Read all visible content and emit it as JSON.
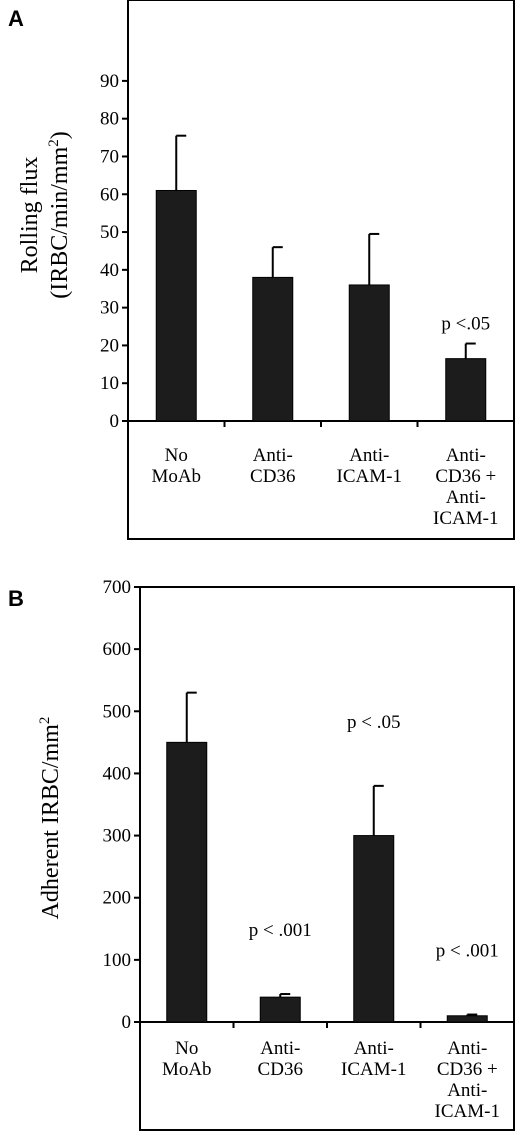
{
  "chart_data": [
    {
      "type": "bar",
      "panel": "A",
      "ylabel_line1": "Rolling flux",
      "ylabel_line2": "(IRBC/min/mm",
      "ylabel_sup": "2",
      "ylabel_close": ")",
      "ylim": [
        0,
        95
      ],
      "yticks": [
        0,
        10,
        20,
        30,
        40,
        50,
        60,
        70,
        80,
        90
      ],
      "categories": [
        [
          "No",
          "MoAb"
        ],
        [
          "Anti-",
          "CD36"
        ],
        [
          "Anti-",
          "ICAM-1"
        ],
        [
          "Anti-",
          "CD36 +",
          "Anti-",
          "ICAM-1"
        ]
      ],
      "values": [
        61,
        38,
        36,
        16.5
      ],
      "errors": [
        14.5,
        8,
        13.5,
        4
      ],
      "annotations": [
        "",
        "",
        "",
        "p <.05"
      ],
      "grid": false,
      "legend": "none"
    },
    {
      "type": "bar",
      "panel": "B",
      "ylabel_main": "Adherent IRBC/mm",
      "ylabel_sup": "2",
      "ylim": [
        0,
        700
      ],
      "yticks": [
        0,
        100,
        200,
        300,
        400,
        500,
        600,
        700
      ],
      "categories": [
        [
          "No",
          "MoAb"
        ],
        [
          "Anti-",
          "CD36"
        ],
        [
          "Anti-",
          "ICAM-1"
        ],
        [
          "Anti-",
          "CD36 +",
          "Anti-",
          "ICAM-1"
        ]
      ],
      "values": [
        450,
        40,
        300,
        10
      ],
      "errors": [
        80,
        5,
        80,
        2
      ],
      "annotations": [
        "",
        "p < .001",
        "p < .05",
        "p < .001"
      ],
      "grid": false,
      "legend": "none"
    }
  ]
}
